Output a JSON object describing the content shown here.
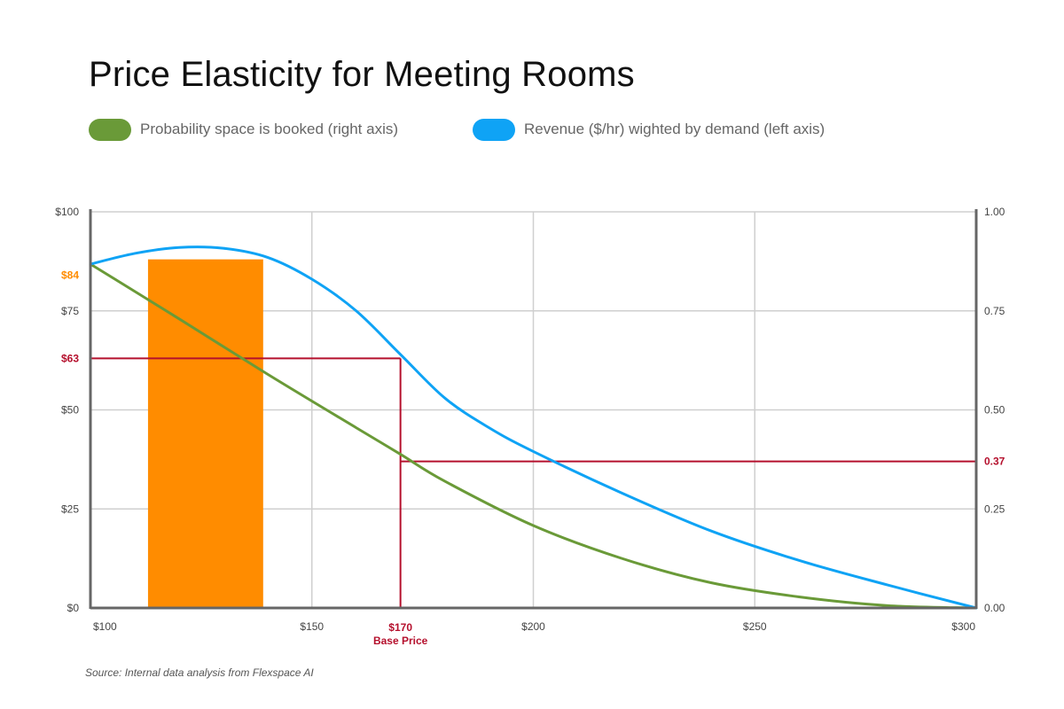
{
  "chart_data": {
    "type": "line",
    "title": "Price Elasticity for Meeting Rooms",
    "source": "Source: Internal data analysis from Flexspace AI",
    "x_tick_labels": [
      "$100",
      "$150",
      "$200",
      "$250",
      "$300"
    ],
    "x_ticks": [
      100,
      150,
      200,
      250,
      300
    ],
    "xlim": [
      100,
      300
    ],
    "ylim_left": [
      0,
      100
    ],
    "ylim_right": [
      0,
      1
    ],
    "left_tick_labels": [
      "$0",
      "$25",
      "$50",
      "$75",
      "$100"
    ],
    "left_ticks": [
      0,
      25,
      50,
      75,
      100
    ],
    "right_tick_labels": [
      "0.00",
      "0.25",
      "0.50",
      "0.75",
      "1.00"
    ],
    "right_ticks": [
      0,
      0.25,
      0.5,
      0.75,
      1.0
    ],
    "grid": true,
    "legend_position": "top-left",
    "series": [
      {
        "name": "Probability space is booked (right axis)",
        "axis": "right",
        "color": "#6a9a38",
        "x": [
          100,
          120,
          140,
          160,
          170,
          180,
          200,
          220,
          240,
          260,
          280,
          300
        ],
        "y": [
          0.868,
          0.73,
          0.59,
          0.455,
          0.388,
          0.32,
          0.208,
          0.125,
          0.064,
          0.028,
          0.006,
          0.0
        ]
      },
      {
        "name": "Revenue ($/hr) wighted by demand (left axis)",
        "axis": "left",
        "color": "#0fa3f5",
        "x": [
          100,
          110,
          120,
          130,
          140,
          150,
          160,
          170,
          180,
          190,
          200,
          220,
          240,
          260,
          280,
          300
        ],
        "y": [
          86.8,
          89.5,
          91.0,
          90.8,
          88.5,
          83.0,
          75.0,
          64.0,
          53.0,
          45.5,
          39.5,
          29.0,
          19.5,
          12.0,
          5.8,
          0.0
        ]
      }
    ],
    "bar": {
      "x_start": 113,
      "x_end": 139,
      "value": 88,
      "color": "#ff8c00"
    },
    "highlights": {
      "base_price_x": 170,
      "base_price_label": "$170",
      "base_price_sublabel": "Base Price",
      "left_red_value": 63,
      "left_red_label": "$63",
      "left_orange_value": 84,
      "left_orange_label": "$84",
      "right_red_value": 0.37,
      "right_red_label": "0.37",
      "red_color": "#b5102d",
      "orange_color": "#ff8c00"
    }
  }
}
